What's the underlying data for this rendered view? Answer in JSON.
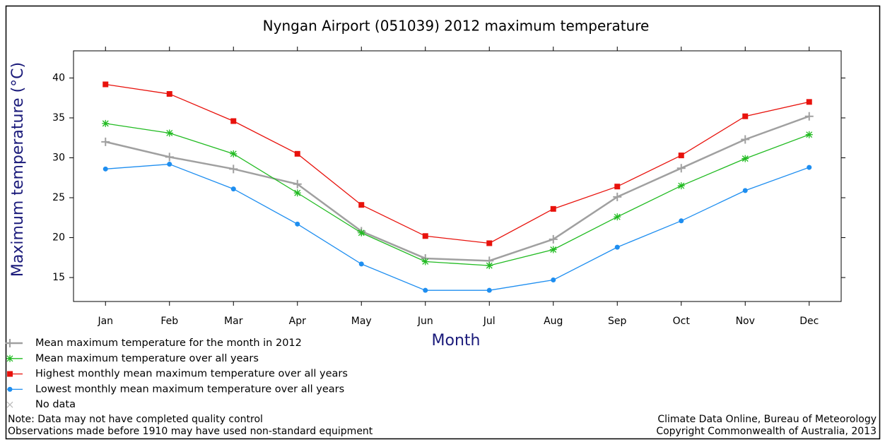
{
  "chart_data": {
    "type": "line",
    "title": "Nyngan Airport (051039) 2012 maximum temperature",
    "x_label": "Month",
    "y_label": "Maximum temperature (°C)",
    "categories": [
      "Jan",
      "Feb",
      "Mar",
      "Apr",
      "May",
      "Jun",
      "Jul",
      "Aug",
      "Sep",
      "Oct",
      "Nov",
      "Dec"
    ],
    "series": [
      {
        "name": "Mean maximum temperature for the month in 2012",
        "color": "#a0a0a0",
        "marker": "plus",
        "values": [
          32.0,
          30.1,
          28.6,
          26.7,
          20.8,
          17.4,
          17.1,
          19.8,
          25.1,
          28.7,
          32.3,
          35.2
        ]
      },
      {
        "name": "Mean maximum temperature over all years",
        "color": "#22bb22",
        "marker": "star",
        "values": [
          34.3,
          33.1,
          30.5,
          25.6,
          20.6,
          17.0,
          16.5,
          18.5,
          22.6,
          26.5,
          29.9,
          32.9
        ]
      },
      {
        "name": "Highest monthly mean maximum temperature over all years",
        "color": "#e8120c",
        "marker": "square",
        "values": [
          39.2,
          38.0,
          34.6,
          30.5,
          24.1,
          20.2,
          19.3,
          23.6,
          26.4,
          30.3,
          35.2,
          37.0
        ]
      },
      {
        "name": "Lowest monthly mean maximum temperature over all years",
        "color": "#1e8ef0",
        "marker": "circle",
        "values": [
          28.6,
          29.2,
          26.1,
          21.7,
          16.7,
          13.4,
          13.4,
          14.7,
          18.8,
          22.1,
          25.9,
          28.8
        ]
      }
    ],
    "no_data_label": "No data",
    "ylim": [
      12,
      43.4
    ],
    "yticks": [
      15,
      20,
      25,
      30,
      35,
      40
    ],
    "grid": false,
    "notes": [
      "Note: Data may not have completed quality control",
      "Observations made before 1910 may have used non-standard equipment"
    ],
    "credits": [
      "Climate Data Online, Bureau of Meteorology",
      "Copyright Commonwealth of Australia, 2013"
    ]
  }
}
